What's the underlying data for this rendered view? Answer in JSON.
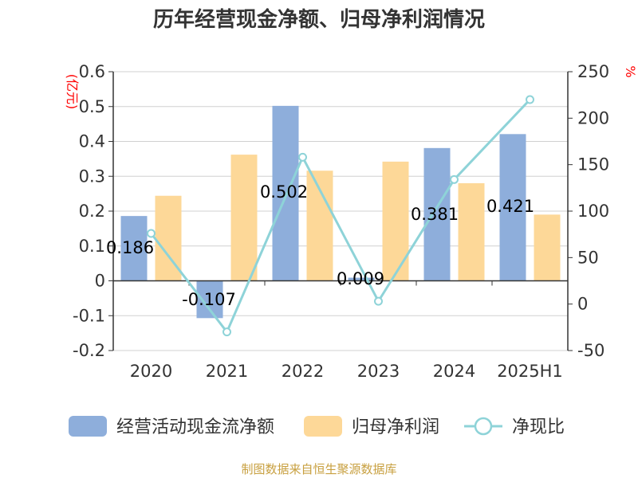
{
  "title": "历年经营现金净额、归母净利润情况",
  "source": "制图数据来自恒生聚源数据库",
  "chart_data": {
    "type": "bar",
    "categories": [
      "2020",
      "2021",
      "2022",
      "2023",
      "2024",
      "2025H1"
    ],
    "series": [
      {
        "name": "经营活动现金流净额",
        "type": "bar",
        "axis": "left",
        "color": "#8eaedb",
        "values": [
          0.186,
          -0.107,
          0.502,
          0.009,
          0.381,
          0.421
        ],
        "labels": [
          "0.186",
          "-0.107",
          "0.502",
          "0.009",
          "0.381",
          "0.421"
        ]
      },
      {
        "name": "归母净利润",
        "type": "bar",
        "axis": "left",
        "color": "#fdd898",
        "values": [
          0.244,
          0.362,
          0.316,
          0.342,
          0.28,
          0.19
        ]
      },
      {
        "name": "净现比",
        "type": "line",
        "axis": "right",
        "color": "#8ed3d8",
        "values": [
          76,
          -30,
          158,
          3,
          134,
          220
        ]
      }
    ],
    "yleft": {
      "unit": "(亿元)",
      "ylim": [
        -0.2,
        0.6
      ],
      "ticks": [
        "0.6",
        "0.5",
        "0.4",
        "0.3",
        "0.2",
        "0.1",
        "0",
        "-0.1",
        "-0.2"
      ]
    },
    "yright": {
      "unit": "%",
      "ylim": [
        -50,
        250
      ],
      "ticks": [
        "250",
        "200",
        "150",
        "100",
        "50",
        "0",
        "-50"
      ]
    },
    "grid": true,
    "legend": "bottom"
  }
}
